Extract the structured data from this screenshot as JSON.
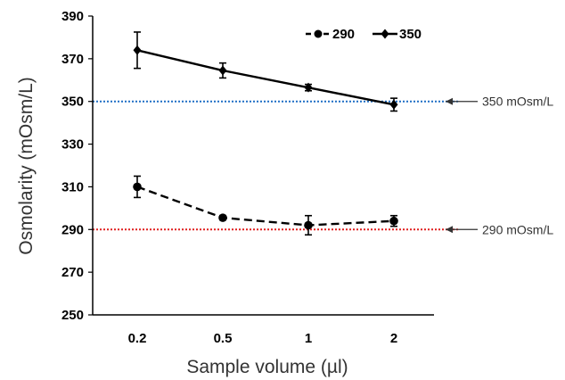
{
  "chart_data": {
    "type": "line",
    "categories": [
      "0.2",
      "0.5",
      "1",
      "2"
    ],
    "xlabel": "Sample volume (µl)",
    "ylabel": "Osmolarity (mOsm/L)",
    "ylim": [
      250,
      390
    ],
    "yticks": [
      "250",
      "270",
      "290",
      "310",
      "330",
      "350",
      "370",
      "390"
    ],
    "legend_position": "top-right",
    "series": [
      {
        "name": "290",
        "style": "dashed",
        "marker": "circle",
        "color": "#000000",
        "values": [
          310,
          295.5,
          292,
          294
        ],
        "errors": [
          5,
          1,
          4.5,
          2.5
        ]
      },
      {
        "name": "350",
        "style": "solid",
        "marker": "diamond",
        "color": "#000000",
        "values": [
          374,
          364.5,
          356.5,
          348.5
        ],
        "errors": [
          8.5,
          3.5,
          1.5,
          3
        ]
      }
    ],
    "reference_lines": [
      {
        "value": 350,
        "label": "350 mOsm/L",
        "color": "#1f6fc5"
      },
      {
        "value": 290,
        "label": "290 mOsm/L",
        "color": "#e02020"
      }
    ]
  }
}
